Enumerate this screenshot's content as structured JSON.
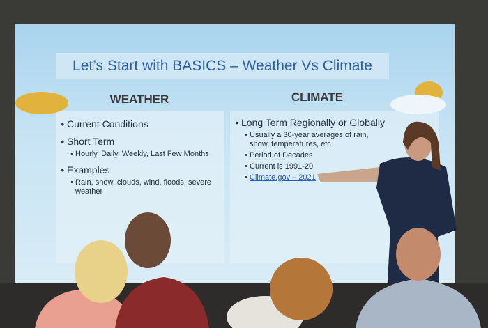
{
  "slide": {
    "title": "Let’s Start with BASICS – Weather Vs Climate",
    "columns": [
      {
        "heading": "WEATHER",
        "bullets": [
          {
            "text": "Current Conditions",
            "sub": []
          },
          {
            "text": "Short Term",
            "sub": [
              "Hourly, Daily, Weekly, Last Few Months"
            ]
          },
          {
            "text": "Examples",
            "sub": [
              "Rain, snow, clouds, wind, floods, severe weather"
            ]
          }
        ]
      },
      {
        "heading": "CLIMATE",
        "bullets": [
          {
            "text": "Long Term Regionally or Globally",
            "sub": [
              "Usually a 30-year averages of rain, snow, temperatures, etc",
              "Period of Decades",
              "Current is 1991-20",
              "Climate.gov – 2021"
            ]
          }
        ]
      }
    ]
  }
}
